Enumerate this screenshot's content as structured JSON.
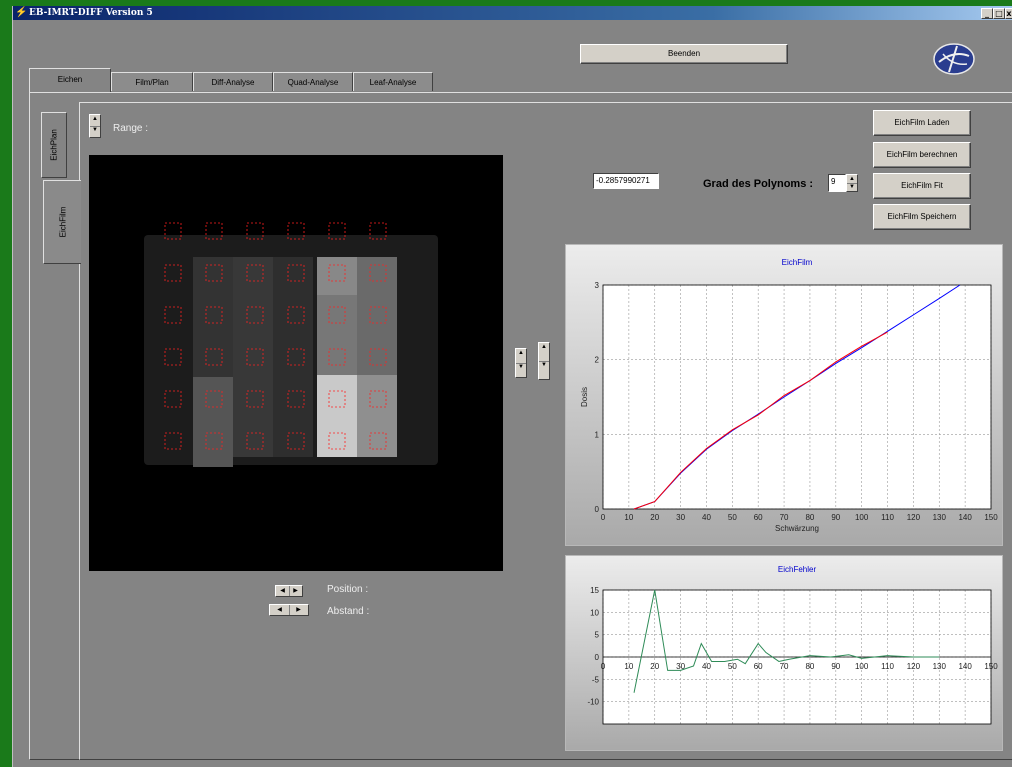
{
  "window": {
    "title": "EB-IMRT-DIFF  Version 5",
    "controls": [
      "_",
      "□",
      "x"
    ]
  },
  "beenden_label": "Beenden",
  "tabs": [
    {
      "label": "Eichen",
      "active": true
    },
    {
      "label": "Film/Plan"
    },
    {
      "label": "Diff-Analyse"
    },
    {
      "label": "Quad-Analyse"
    },
    {
      "label": "Leaf-Analyse"
    }
  ],
  "side_tabs": [
    "EichPlan",
    "EichFilm"
  ],
  "range_label": "Range :",
  "buttons": {
    "laden": "EichFilm Laden",
    "berechnen": "EichFilm berechnen",
    "fit": "EichFilm Fit",
    "speichern": "EichFilm Speichern"
  },
  "value_field": "-0.2857990271",
  "polynom_label": "Grad des Polynoms :",
  "polynom_value": "9",
  "position_label": "Position :",
  "abstand_label": "Abstand :",
  "colors": {
    "fit_line": "#0000ff",
    "data_line": "#ff0000",
    "error_line": "#2e8b57",
    "chart_title": "#0000cc"
  },
  "chart_data": [
    {
      "type": "line",
      "title": "EichFilm",
      "xlabel": "Schwärzung",
      "ylabel": "Dosis",
      "xlim": [
        0,
        150
      ],
      "ylim": [
        0,
        3
      ],
      "xticks": [
        0,
        10,
        20,
        30,
        40,
        50,
        60,
        70,
        80,
        90,
        100,
        110,
        120,
        130,
        140,
        150
      ],
      "yticks": [
        0,
        1,
        2,
        3
      ],
      "grid": true,
      "series": [
        {
          "color": "#0000ff",
          "x": [
            12,
            20,
            30,
            40,
            50,
            60,
            70,
            80,
            90,
            100,
            110,
            120,
            130,
            138
          ],
          "y": [
            0,
            0.1,
            0.48,
            0.8,
            1.05,
            1.27,
            1.5,
            1.72,
            1.95,
            2.16,
            2.38,
            2.6,
            2.82,
            3.0
          ]
        },
        {
          "color": "#ff0000",
          "x": [
            12,
            20,
            30,
            40,
            50,
            60,
            70,
            80,
            90,
            100,
            110
          ],
          "y": [
            0,
            0.1,
            0.49,
            0.81,
            1.06,
            1.26,
            1.52,
            1.72,
            1.97,
            2.18,
            2.37
          ]
        }
      ]
    },
    {
      "type": "line",
      "title": "EichFehler",
      "xlim": [
        0,
        150
      ],
      "ylim": [
        -15,
        15
      ],
      "xticks": [
        0,
        10,
        20,
        30,
        40,
        50,
        60,
        70,
        80,
        90,
        100,
        110,
        120,
        130,
        140,
        150
      ],
      "yticks": [
        15,
        10,
        5,
        0,
        -5,
        -10
      ],
      "grid": true,
      "series": [
        {
          "color": "#2e8b57",
          "x": [
            12,
            20,
            25,
            30,
            35,
            38,
            42,
            47,
            52,
            55,
            60,
            63,
            68,
            72,
            80,
            88,
            95,
            100,
            110,
            120,
            130
          ],
          "y": [
            -8,
            15,
            -3,
            -3,
            -2,
            3,
            -1,
            -1,
            -0.5,
            -1.5,
            3,
            1,
            -1,
            -0.5,
            0.3,
            0,
            0.5,
            -0.3,
            0.3,
            0,
            0
          ]
        }
      ]
    }
  ]
}
